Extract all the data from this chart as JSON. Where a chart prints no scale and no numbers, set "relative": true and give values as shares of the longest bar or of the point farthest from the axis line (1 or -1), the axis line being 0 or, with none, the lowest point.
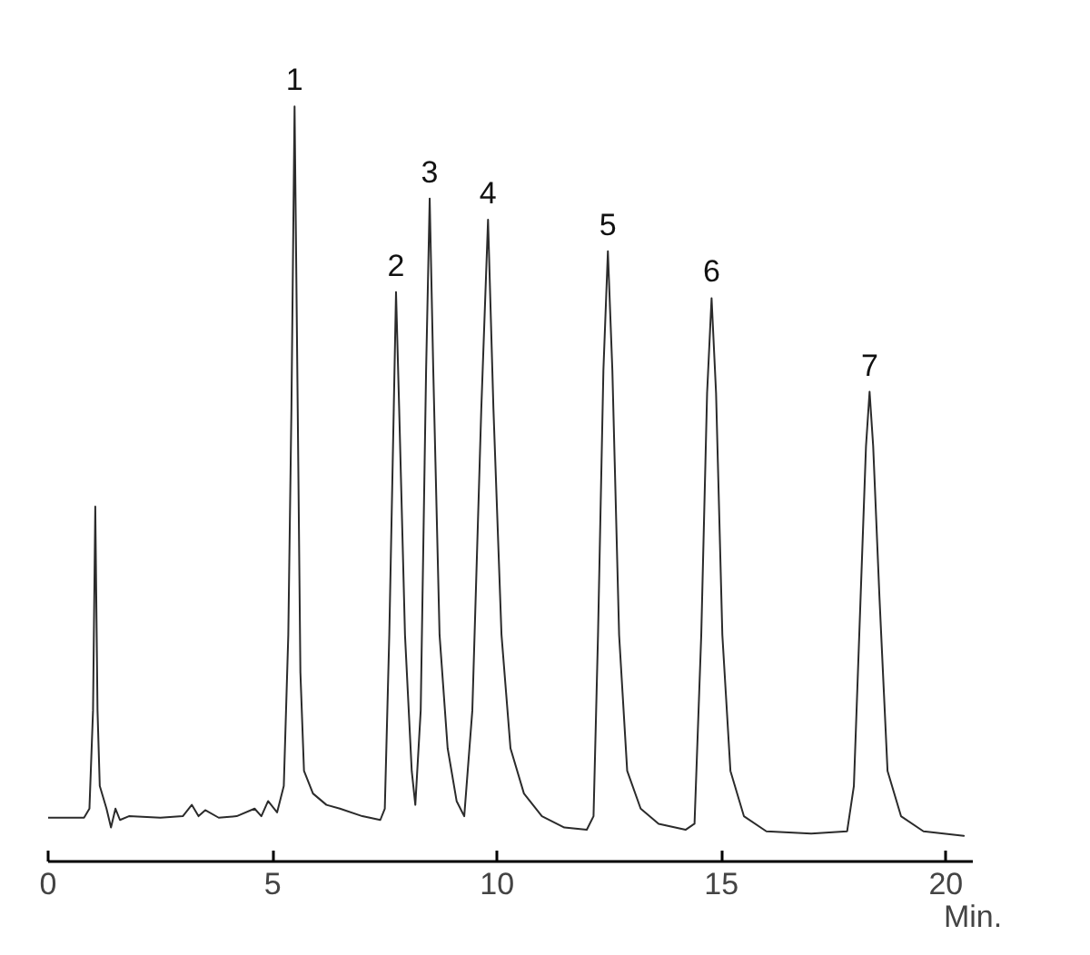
{
  "chart_data": {
    "type": "line",
    "relative": true,
    "color": "#2b2b2b",
    "xlabel": "Min.",
    "xlim": [
      0,
      20.6
    ],
    "xticks": [
      0,
      5,
      10,
      15,
      20
    ],
    "x": [
      0,
      0.8,
      0.92,
      1.0,
      1.05,
      1.1,
      1.15,
      1.3,
      1.4,
      1.5,
      1.6,
      1.8,
      2.5,
      3.0,
      3.2,
      3.35,
      3.5,
      3.8,
      4.2,
      4.6,
      4.75,
      4.9,
      5.1,
      5.25,
      5.35,
      5.42,
      5.49,
      5.56,
      5.62,
      5.7,
      5.9,
      6.2,
      6.5,
      7.0,
      7.4,
      7.5,
      7.6,
      7.7,
      7.75,
      7.82,
      7.95,
      8.1,
      8.18,
      8.3,
      8.42,
      8.5,
      8.58,
      8.72,
      8.9,
      9.1,
      9.27,
      9.45,
      9.65,
      9.8,
      9.92,
      10.1,
      10.3,
      10.6,
      11,
      11.5,
      12.0,
      12.15,
      12.25,
      12.37,
      12.47,
      12.57,
      12.72,
      12.9,
      13.2,
      13.6,
      14.2,
      14.4,
      14.55,
      14.68,
      14.78,
      14.88,
      15.02,
      15.2,
      15.5,
      16,
      17,
      17.8,
      17.95,
      18.1,
      18.22,
      18.3,
      18.38,
      18.52,
      18.7,
      19,
      19.5,
      20.4
    ],
    "values": [
      0.058,
      0.058,
      0.07,
      0.2,
      0.47,
      0.2,
      0.1,
      0.07,
      0.045,
      0.07,
      0.055,
      0.06,
      0.058,
      0.06,
      0.075,
      0.06,
      0.068,
      0.058,
      0.06,
      0.07,
      0.06,
      0.08,
      0.065,
      0.1,
      0.3,
      0.6,
      1.0,
      0.6,
      0.25,
      0.12,
      0.09,
      0.075,
      0.07,
      0.06,
      0.055,
      0.07,
      0.3,
      0.6,
      0.754,
      0.6,
      0.3,
      0.12,
      0.075,
      0.2,
      0.65,
      0.878,
      0.65,
      0.3,
      0.15,
      0.08,
      0.06,
      0.2,
      0.6,
      0.85,
      0.6,
      0.3,
      0.15,
      0.09,
      0.06,
      0.045,
      0.042,
      0.06,
      0.3,
      0.65,
      0.808,
      0.65,
      0.3,
      0.12,
      0.07,
      0.05,
      0.042,
      0.05,
      0.3,
      0.62,
      0.746,
      0.62,
      0.3,
      0.12,
      0.06,
      0.04,
      0.037,
      0.04,
      0.1,
      0.35,
      0.55,
      0.622,
      0.55,
      0.35,
      0.12,
      0.06,
      0.04,
      0.034
    ],
    "annotations": [
      {
        "text": "1",
        "x": 5.49,
        "y": 1.0
      },
      {
        "text": "2",
        "x": 7.75,
        "y": 0.754
      },
      {
        "text": "3",
        "x": 8.5,
        "y": 0.878
      },
      {
        "text": "4",
        "x": 9.8,
        "y": 0.85
      },
      {
        "text": "5",
        "x": 12.47,
        "y": 0.808
      },
      {
        "text": "6",
        "x": 14.78,
        "y": 0.746
      },
      {
        "text": "7",
        "x": 18.3,
        "y": 0.622
      }
    ]
  }
}
